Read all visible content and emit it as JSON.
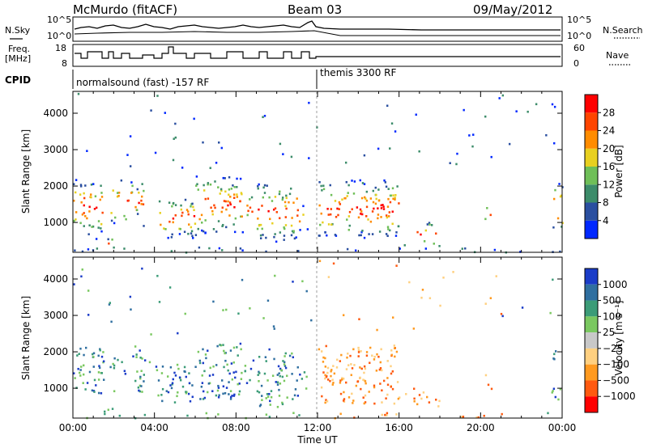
{
  "header": {
    "station": "McMurdo (fitACF)",
    "beam": "Beam 03",
    "date": "09/May/2012"
  },
  "top_panels": {
    "nsky_label": "N.Sky",
    "nsearch_label": "N.Search",
    "freq_label_1": "Freq.",
    "freq_label_2": "[MHz]",
    "nave_label": "Nave",
    "cpid_label": "CPID",
    "left_ticks_top": [
      "10^5",
      "10^0"
    ],
    "right_ticks_top": [
      "10^5",
      "10^0"
    ],
    "left_ticks_freq": [
      "18",
      "8"
    ],
    "right_ticks_nave": [
      "60",
      "0"
    ],
    "cpid_modes": [
      {
        "label": "normalsound (fast) -157 RF",
        "start_hour": 0
      },
      {
        "label": "themis 3300 RF",
        "start_hour": 12
      }
    ]
  },
  "chart_data": [
    {
      "type": "heatmap",
      "ylabel": "Slant Range [km]",
      "xlabel": "",
      "xlim": [
        0,
        24
      ],
      "ylim": [
        180,
        4600
      ],
      "yticks": [
        1000,
        2000,
        3000,
        4000
      ],
      "colorbar": {
        "label": "Power [dB]",
        "ticks": [
          "4",
          "8",
          "12",
          "16",
          "20",
          "24",
          "28"
        ],
        "colors": [
          "#0028ff",
          "#2a4fa0",
          "#3c8c6a",
          "#6fbf58",
          "#e8d020",
          "#ff8c00",
          "#ff4500",
          "#ff0000"
        ]
      }
    },
    {
      "type": "heatmap",
      "ylabel": "Slant Range [km]",
      "xlabel": "Time UT",
      "xlim": [
        0,
        24
      ],
      "ylim": [
        180,
        4600
      ],
      "yticks": [
        1000,
        2000,
        3000,
        4000
      ],
      "xticks": [
        "00:00",
        "04:00",
        "08:00",
        "12:00",
        "16:00",
        "20:00",
        "00:00"
      ],
      "colorbar": {
        "label": "Velocity [m s⁻¹]",
        "ticks": [
          "1000",
          "500",
          "100",
          "25",
          "−25",
          "−100",
          "−500",
          "−1000"
        ],
        "colors": [
          "#1a3cc8",
          "#2f6fa0",
          "#3c9c78",
          "#7ac860",
          "#c8c8c8",
          "#ffd080",
          "#ff9a20",
          "#ff5a10",
          "#ff0000"
        ]
      }
    }
  ]
}
